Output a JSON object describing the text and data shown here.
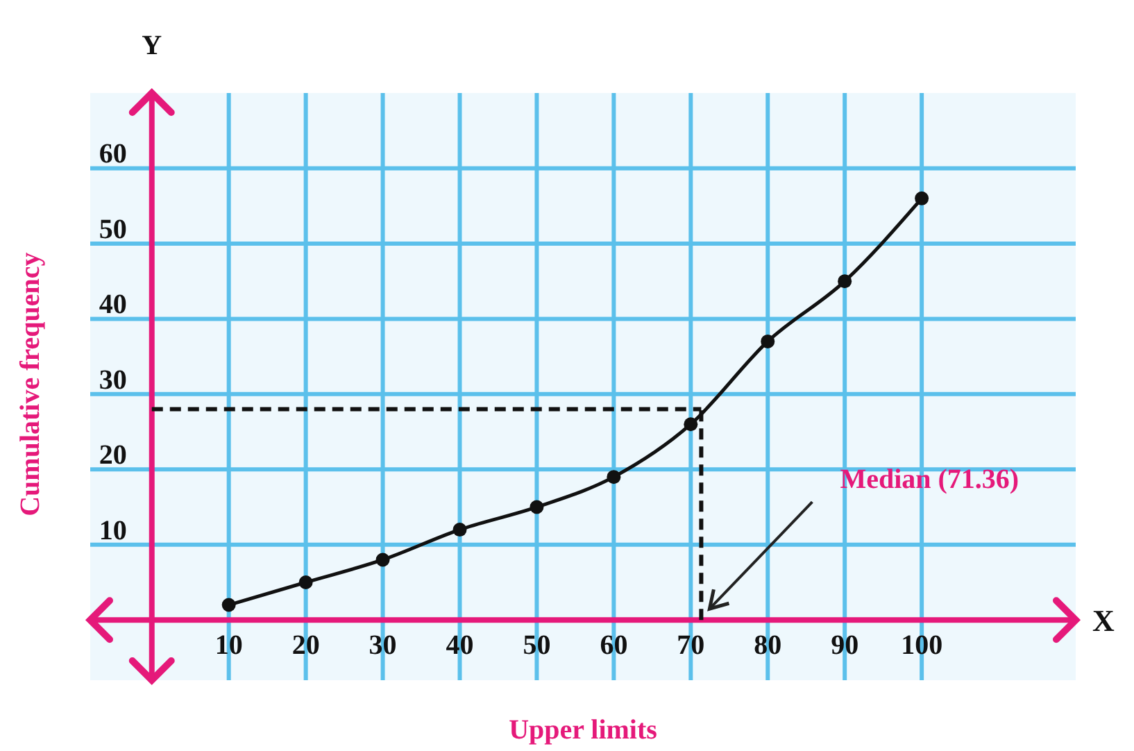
{
  "chart_data": {
    "type": "line",
    "xlabel": "Upper limits",
    "ylabel": "Cumulative frequency",
    "x": [
      10,
      20,
      30,
      40,
      50,
      60,
      70,
      80,
      90,
      100
    ],
    "series": [
      {
        "color": "#111111",
        "values": [
          2,
          5,
          8,
          12,
          15,
          19,
          26,
          37,
          45,
          56
        ]
      }
    ],
    "xlim": [
      -8,
      120
    ],
    "ylim": [
      -8,
      70
    ],
    "xticks": [
      10,
      20,
      30,
      40,
      50,
      60,
      70,
      80,
      90,
      100
    ],
    "yticks": [
      10,
      20,
      30,
      40,
      50,
      60
    ],
    "grid": true,
    "marker": "circle",
    "line_style": "solid",
    "ref_lines": [
      {
        "axis": "x",
        "value": 0,
        "line_style": "solid",
        "color": "#e5197a"
      },
      {
        "axis": "y",
        "value": 28,
        "line_style": "dashed",
        "color": "#111111"
      },
      {
        "axis": "x",
        "value": 71.36,
        "label": "Median (71.36)",
        "line_style": "dashed",
        "color": "#111111"
      }
    ],
    "annotations": [
      "X",
      "Y"
    ]
  }
}
